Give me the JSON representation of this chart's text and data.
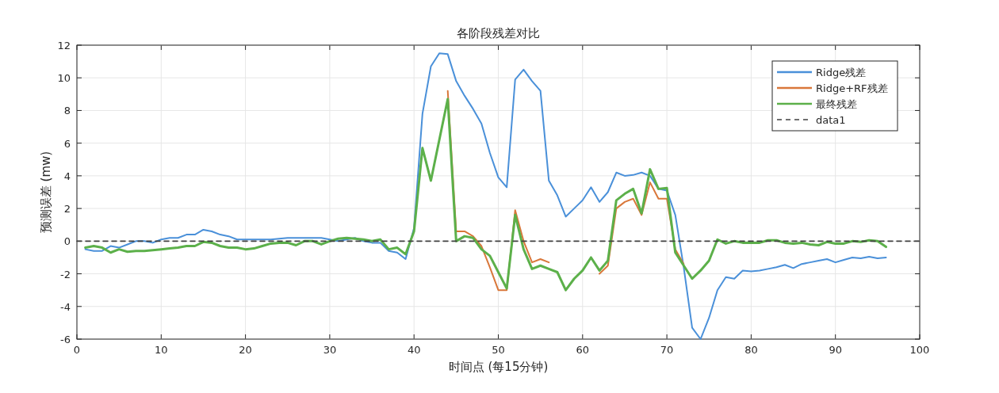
{
  "chart_data": {
    "type": "line",
    "title": "各阶段残差对比",
    "xlabel": "时间点 (每15分钟)",
    "ylabel": "预测误差 (mw)",
    "x": [
      1,
      2,
      3,
      4,
      5,
      6,
      7,
      8,
      9,
      10,
      11,
      12,
      13,
      14,
      15,
      16,
      17,
      18,
      19,
      20,
      21,
      22,
      23,
      24,
      25,
      26,
      27,
      28,
      29,
      30,
      31,
      32,
      33,
      34,
      35,
      36,
      37,
      38,
      39,
      40,
      41,
      42,
      43,
      44,
      45,
      46,
      47,
      48,
      49,
      50,
      51,
      52,
      53,
      54,
      55,
      56,
      57,
      58,
      59,
      60,
      61,
      62,
      63,
      64,
      65,
      66,
      67,
      68,
      69,
      70,
      71,
      72,
      73,
      74,
      75,
      76,
      77,
      78,
      79,
      80,
      81,
      82,
      83,
      84,
      85,
      86,
      87,
      88,
      89,
      90,
      91,
      92,
      93,
      94,
      95,
      96
    ],
    "series": [
      {
        "name": "Ridge残差",
        "color": "#4a90d9",
        "values": [
          -0.5,
          -0.6,
          -0.6,
          -0.3,
          -0.4,
          -0.2,
          0,
          0,
          -0.1,
          0.1,
          0.2,
          0.2,
          0.4,
          0.4,
          0.7,
          0.6,
          0.4,
          0.3,
          0.1,
          0.1,
          0.1,
          0.1,
          0.1,
          0.15,
          0.2,
          0.2,
          0.2,
          0.2,
          0.2,
          0.1,
          0,
          0.1,
          0.2,
          0,
          -0.1,
          -0.1,
          -0.6,
          -0.7,
          -1.1,
          0.8,
          7.8,
          10.7,
          11.5,
          11.45,
          9.8,
          8.9,
          8.1,
          7.2,
          5.4,
          3.9,
          3.3,
          9.9,
          10.5,
          9.8,
          9.2,
          3.7,
          2.8,
          1.5,
          2.0,
          2.5,
          3.3,
          2.4,
          3.0,
          4.2,
          4.0,
          4.05,
          4.2,
          4.0,
          3.2,
          3.1,
          1.6,
          -1.6,
          -5.3,
          -6.0,
          -4.7,
          -3.0,
          -2.2,
          -2.3,
          -1.8,
          -1.85,
          -1.8,
          -1.7,
          -1.6,
          -1.45,
          -1.65,
          -1.4,
          -1.3,
          -1.2,
          -1.1,
          -1.3,
          -1.15,
          -1.0,
          -1.05,
          -0.95,
          -1.05,
          -1.0
        ]
      },
      {
        "name": "Ridge+RF残差",
        "color": "#d9773a",
        "values": [
          null,
          null,
          null,
          null,
          null,
          null,
          null,
          null,
          null,
          null,
          null,
          null,
          null,
          null,
          null,
          null,
          null,
          null,
          null,
          null,
          null,
          null,
          null,
          null,
          null,
          null,
          null,
          null,
          null,
          null,
          null,
          null,
          null,
          null,
          null,
          null,
          null,
          null,
          null,
          null,
          null,
          null,
          null,
          9.2,
          0.6,
          0.6,
          0.3,
          -0.3,
          -1.6,
          -3.0,
          -3.0,
          1.9,
          0,
          -1.3,
          -1.1,
          -1.3,
          null,
          null,
          null,
          null,
          null,
          -2.0,
          -1.5,
          2.0,
          2.4,
          2.6,
          1.6,
          3.6,
          2.6,
          2.6,
          -0.5,
          -1.4,
          null,
          null,
          null,
          null,
          null,
          null,
          null,
          null,
          null,
          null,
          null,
          null,
          null,
          null,
          null,
          null,
          null,
          null,
          null,
          null,
          null,
          null,
          null,
          null
        ]
      },
      {
        "name": "最终残差",
        "color": "#5cb04a",
        "values": [
          -0.4,
          -0.3,
          -0.4,
          -0.7,
          -0.5,
          -0.65,
          -0.6,
          -0.6,
          -0.55,
          -0.5,
          -0.45,
          -0.4,
          -0.3,
          -0.3,
          -0.05,
          -0.1,
          -0.3,
          -0.4,
          -0.4,
          -0.5,
          -0.45,
          -0.3,
          -0.15,
          -0.1,
          -0.1,
          -0.25,
          0,
          0,
          -0.2,
          0,
          0.15,
          0.2,
          0.15,
          0.1,
          0,
          0.1,
          -0.5,
          -0.4,
          -0.8,
          0.6,
          5.7,
          3.7,
          6.2,
          8.7,
          0,
          0.3,
          0.2,
          -0.5,
          -0.9,
          -1.9,
          -2.9,
          1.6,
          -0.5,
          -1.7,
          -1.5,
          -1.7,
          -1.9,
          -3.0,
          -2.3,
          -1.8,
          -1.0,
          -1.8,
          -1.2,
          2.5,
          2.9,
          3.2,
          1.7,
          4.4,
          3.2,
          3.25,
          -0.7,
          -1.5,
          -2.3,
          -1.8,
          -1.2,
          0.1,
          -0.15,
          0,
          -0.1,
          -0.1,
          -0.1,
          0.05,
          0.05,
          -0.1,
          -0.15,
          -0.1,
          -0.2,
          -0.25,
          -0.05,
          -0.15,
          -0.15,
          0,
          -0.05,
          0.05,
          0,
          -0.35
        ]
      },
      {
        "name": "data1",
        "color": "#404040",
        "line_style": "dashed",
        "x": [
          0,
          100
        ],
        "values": [
          0,
          0
        ]
      }
    ],
    "xlim": [
      0,
      100
    ],
    "ylim": [
      -6,
      12
    ],
    "xticks": [
      0,
      10,
      20,
      30,
      40,
      50,
      60,
      70,
      80,
      90,
      100
    ],
    "yticks": [
      -6,
      -4,
      -2,
      0,
      2,
      4,
      6,
      8,
      10,
      12
    ],
    "grid": true,
    "legend": "top right",
    "marker": "none",
    "line_style": "solid"
  }
}
